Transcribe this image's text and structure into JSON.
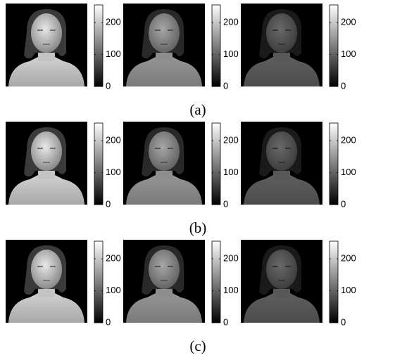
{
  "figure": {
    "colorbar": {
      "lim": [
        0,
        255
      ],
      "ticks": [
        0,
        100,
        200
      ]
    },
    "rows": [
      {
        "label": "(a)"
      },
      {
        "label": "(b)"
      },
      {
        "label": "(c)"
      }
    ]
  }
}
